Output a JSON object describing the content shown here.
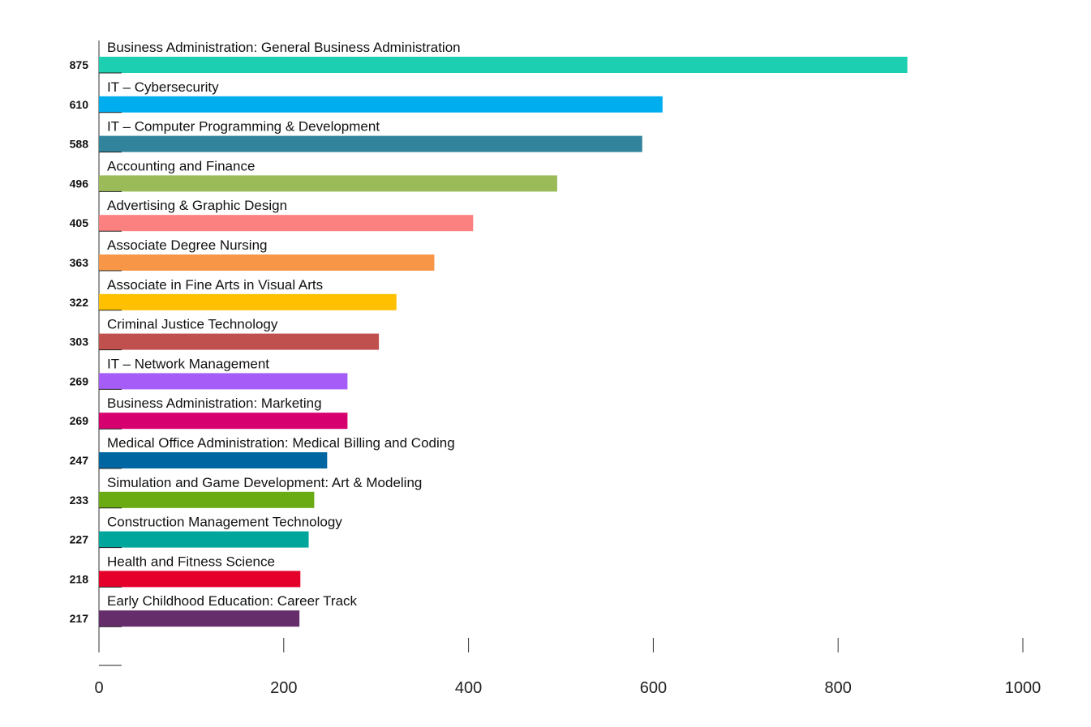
{
  "chart_data": {
    "type": "bar",
    "orientation": "horizontal",
    "title": "",
    "xlabel": "",
    "ylabel": "",
    "xlim": [
      0,
      1000
    ],
    "x_ticks": [
      0,
      200,
      400,
      600,
      800,
      1000
    ],
    "grid": false,
    "legend": "none",
    "categories": [
      "Business Administration: General Business Administration",
      "IT – Cybersecurity",
      "IT – Computer Programming & Development",
      "Accounting and Finance",
      "Advertising & Graphic Design",
      "Associate Degree Nursing",
      "Associate in Fine Arts in Visual Arts",
      "Criminal Justice Technology",
      "IT – Network Management",
      "Business Administration: Marketing",
      "Medical Office Administration: Medical Billing and Coding",
      "Simulation and Game Development: Art & Modeling",
      "Construction Management Technology",
      "Health and Fitness Science",
      "Early Childhood Education: Career Track"
    ],
    "values": [
      875,
      610,
      588,
      496,
      405,
      363,
      322,
      303,
      269,
      269,
      247,
      233,
      227,
      218,
      217
    ],
    "colors": [
      "#1ccfb0",
      "#00aeef",
      "#31849b",
      "#9bbb59",
      "#fb8080",
      "#f79646",
      "#ffc000",
      "#c0504d",
      "#a65cf7",
      "#d6006e",
      "#0066a1",
      "#6aaa12",
      "#00a69c",
      "#e4002b",
      "#662d6b"
    ]
  }
}
